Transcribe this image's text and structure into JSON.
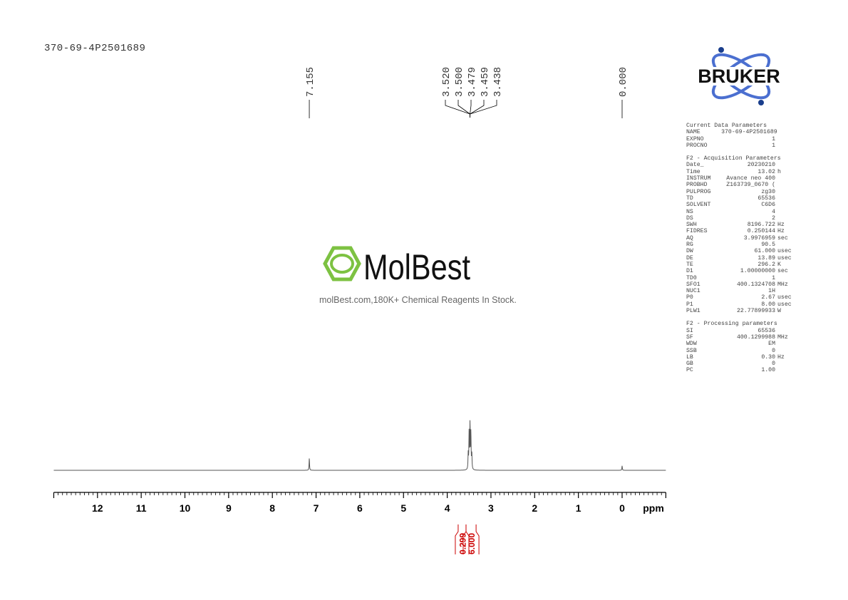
{
  "sample_name": "370-69-4P2501689",
  "brand": {
    "logo": "BRUKER",
    "color": "#1a3e8c",
    "accent": "#4b6fd0"
  },
  "watermark": {
    "logo": "MolBest",
    "tagline": "molBest.com,180K+ Chemical Reagents In Stock.",
    "color": "#7dc242"
  },
  "params": {
    "current": {
      "title": "Current Data Parameters",
      "rows": [
        [
          "NAME",
          "370-69-4P2501689",
          ""
        ],
        [
          "EXPNO",
          "1",
          ""
        ],
        [
          "PROCNO",
          "1",
          ""
        ]
      ]
    },
    "acq": {
      "title": "F2 - Acquisition Parameters",
      "rows": [
        [
          "Date_",
          "20230210",
          ""
        ],
        [
          "Time",
          "13.02",
          "h"
        ],
        [
          "INSTRUM",
          "Avance neo 400",
          ""
        ],
        [
          "PROBHD",
          "Z163739_0670 (",
          ""
        ],
        [
          "PULPROG",
          "zg30",
          ""
        ],
        [
          "TD",
          "65536",
          ""
        ],
        [
          "SOLVENT",
          "C6D6",
          ""
        ],
        [
          "NS",
          "4",
          ""
        ],
        [
          "DS",
          "2",
          ""
        ],
        [
          "SWH",
          "8196.722",
          "Hz"
        ],
        [
          "FIDRES",
          "0.250144",
          "Hz"
        ],
        [
          "AQ",
          "3.9976959",
          "sec"
        ],
        [
          "RG",
          "90.5",
          ""
        ],
        [
          "DW",
          "61.000",
          "usec"
        ],
        [
          "DE",
          "13.89",
          "usec"
        ],
        [
          "TE",
          "296.2",
          "K"
        ],
        [
          "D1",
          "1.00000000",
          "sec"
        ],
        [
          "TD0",
          "1",
          ""
        ],
        [
          "SFO1",
          "400.1324708",
          "MHz"
        ],
        [
          "NUC1",
          "1H",
          ""
        ],
        [
          "P0",
          "2.67",
          "usec"
        ],
        [
          "P1",
          "8.00",
          "usec"
        ],
        [
          "PLW1",
          "22.77899933",
          "W"
        ]
      ]
    },
    "proc": {
      "title": "F2 - Processing parameters",
      "rows": [
        [
          "SI",
          "65536",
          ""
        ],
        [
          "SF",
          "400.1299988",
          "MHz"
        ],
        [
          "WDW",
          "EM",
          ""
        ],
        [
          "SSB",
          "0",
          ""
        ],
        [
          "LB",
          "0.30",
          "Hz"
        ],
        [
          "GB",
          "0",
          ""
        ],
        [
          "PC",
          "1.00",
          ""
        ]
      ]
    }
  },
  "chart_data": {
    "type": "line",
    "xlabel": "ppm",
    "xlim": [
      13.0,
      -1.0
    ],
    "x_reversed": true,
    "ticks": [
      12,
      11,
      10,
      9,
      8,
      7,
      6,
      5,
      4,
      3,
      2,
      1,
      0
    ],
    "tick_labels": [
      "12",
      "11",
      "10",
      "9",
      "8",
      "7",
      "6",
      "5",
      "4",
      "3",
      "2",
      "1",
      "0"
    ],
    "peaks": [
      {
        "ppm": 7.155,
        "height": 0.27
      },
      {
        "ppm": 3.52,
        "height": 0.35
      },
      {
        "ppm": 3.5,
        "height": 0.8
      },
      {
        "ppm": 3.479,
        "height": 1.0
      },
      {
        "ppm": 3.459,
        "height": 0.8
      },
      {
        "ppm": 3.438,
        "height": 0.35
      },
      {
        "ppm": 0.0,
        "height": 0.1
      }
    ],
    "peak_labels": [
      "7.155",
      "3.520",
      "3.500",
      "3.479",
      "3.459",
      "3.438",
      "0.000"
    ],
    "integrals": [
      {
        "from": 3.75,
        "to": 3.57,
        "value": "0.299"
      },
      {
        "from": 3.57,
        "to": 3.34,
        "value": "6.000"
      }
    ],
    "integral_color": "#cc0000",
    "line_color": "#555555"
  }
}
